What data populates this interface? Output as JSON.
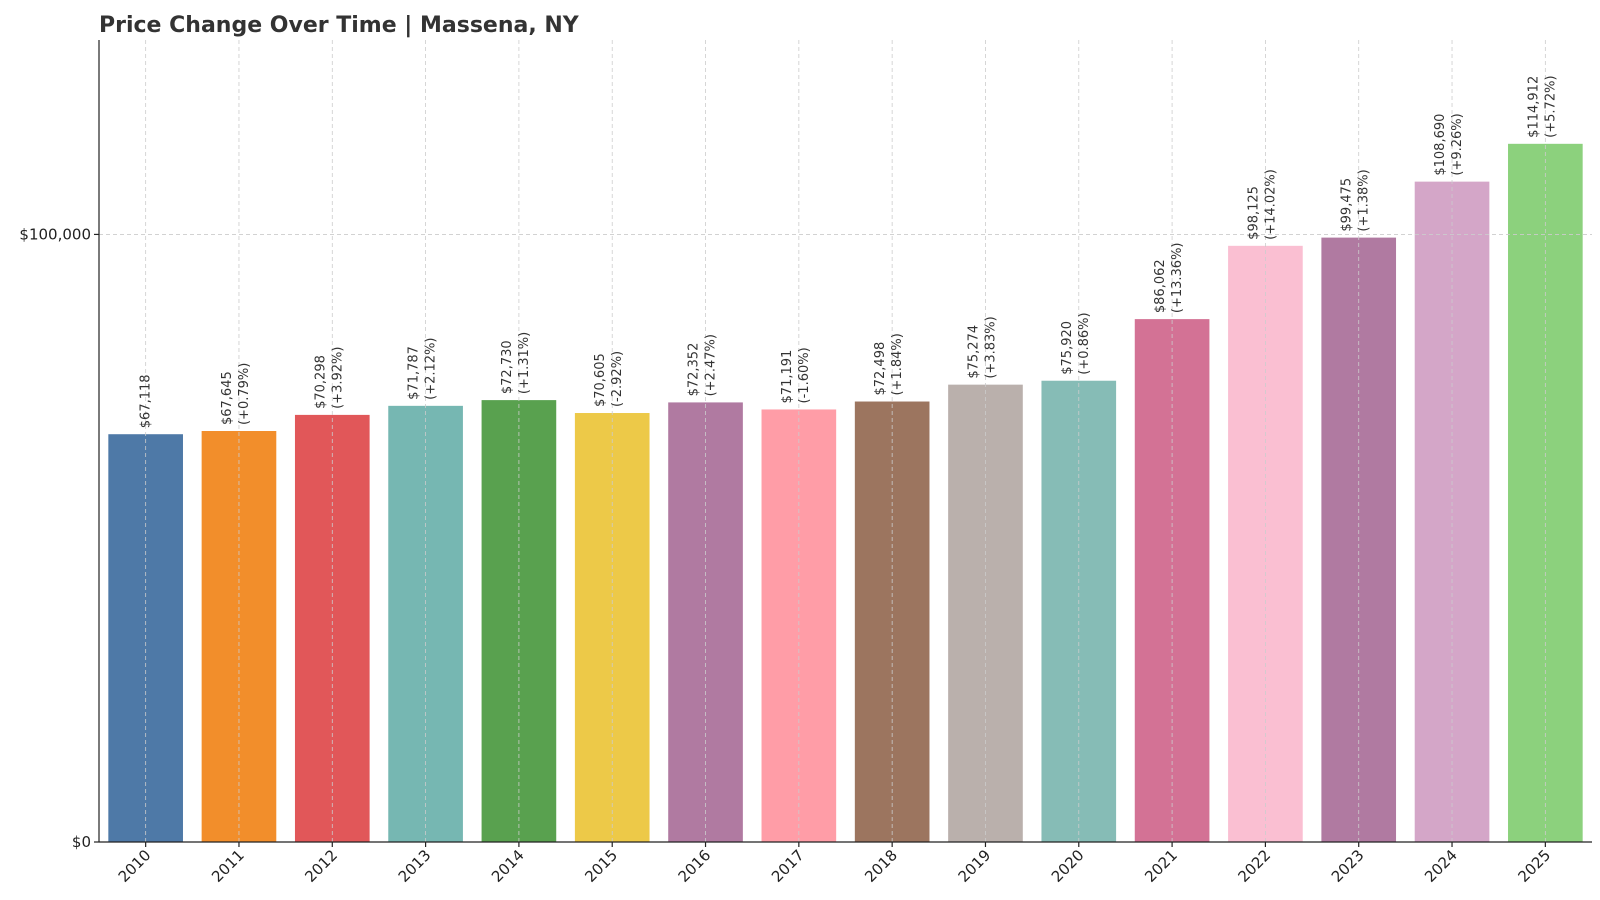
{
  "chart_data": {
    "type": "bar",
    "title": "Price Change Over Time | Massena, NY",
    "xlabel": "",
    "ylabel": "",
    "categories": [
      "2010",
      "2011",
      "2012",
      "2013",
      "2014",
      "2015",
      "2016",
      "2017",
      "2018",
      "2019",
      "2020",
      "2021",
      "2022",
      "2023",
      "2024",
      "2025"
    ],
    "values": [
      67118,
      67645,
      70298,
      71787,
      72730,
      70605,
      72352,
      71191,
      72498,
      75274,
      75920,
      86062,
      98125,
      99475,
      108690,
      114912
    ],
    "value_labels": [
      "$67,118",
      "$67,645",
      "$70,298",
      "$71,787",
      "$72,730",
      "$70,605",
      "$72,352",
      "$71,191",
      "$72,498",
      "$75,274",
      "$75,920",
      "$86,062",
      "$98,125",
      "$99,475",
      "$108,690",
      "$114,912"
    ],
    "change_labels": [
      "",
      "(+0.79%)",
      "(+3.92%)",
      "(+2.12%)",
      "(+1.31%)",
      "(-2.92%)",
      "(+2.47%)",
      "(-1.60%)",
      "(+1.84%)",
      "(+3.83%)",
      "(+0.86%)",
      "(+13.36%)",
      "(+14.02%)",
      "(+1.38%)",
      "(+9.26%)",
      "(+5.72%)"
    ],
    "colors": [
      "#4e79a7",
      "#f28e2b",
      "#e15759",
      "#76b7b2",
      "#59a14f",
      "#edc948",
      "#b07aa1",
      "#ff9da7",
      "#9c755f",
      "#bab0ac",
      "#86bcb6",
      "#d37295",
      "#fabfd2",
      "#b07aa1",
      "#d4a6c8",
      "#8cd17d"
    ],
    "yticks": [
      0,
      100000
    ],
    "ytick_labels": [
      "$0",
      "$100,000"
    ],
    "ylim": [
      0,
      132000
    ],
    "grid": true,
    "legend": "none"
  }
}
